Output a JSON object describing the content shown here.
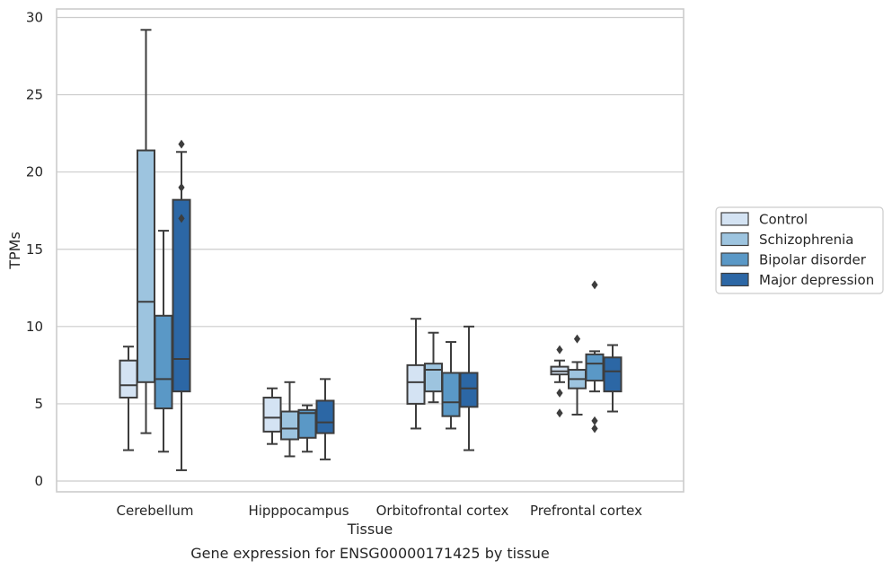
{
  "chart_data": {
    "type": "box",
    "xlabel": "Tissue",
    "ylabel": "TPMs",
    "caption": "Gene expression for ENSG00000171425 by tissue",
    "ylim": [
      -0.5,
      30.6
    ],
    "yticks": [
      0,
      5,
      10,
      15,
      20,
      25,
      30
    ],
    "grid": true,
    "legend_position": "right",
    "categories": [
      "Cerebellum",
      "Hipppocampus",
      "Orbitofrontal cortex",
      "Prefrontal cortex"
    ],
    "series": [
      {
        "name": "Control",
        "color": "#d4e3f3",
        "boxes": [
          {
            "min": 2.0,
            "q1": 5.4,
            "median": 6.2,
            "q3": 7.8,
            "max": 8.7,
            "outliers": []
          },
          {
            "min": 2.4,
            "q1": 3.2,
            "median": 4.1,
            "q3": 5.4,
            "max": 6.0,
            "outliers": []
          },
          {
            "min": 3.4,
            "q1": 5.0,
            "median": 6.4,
            "q3": 7.5,
            "max": 10.5,
            "outliers": []
          },
          {
            "min": 6.4,
            "q1": 6.9,
            "median": 7.1,
            "q3": 7.4,
            "max": 7.8,
            "outliers": [
              8.5,
              5.7,
              4.4
            ]
          }
        ]
      },
      {
        "name": "Schizophrenia",
        "color": "#9dc4df",
        "boxes": [
          {
            "min": 3.1,
            "q1": 6.4,
            "median": 11.6,
            "q3": 21.4,
            "max": 29.2,
            "outliers": []
          },
          {
            "min": 1.6,
            "q1": 2.7,
            "median": 3.4,
            "q3": 4.5,
            "max": 6.4,
            "outliers": []
          },
          {
            "min": 5.1,
            "q1": 5.8,
            "median": 7.2,
            "q3": 7.6,
            "max": 9.6,
            "outliers": []
          },
          {
            "min": 4.3,
            "q1": 6.0,
            "median": 6.6,
            "q3": 7.2,
            "max": 7.7,
            "outliers": [
              9.2
            ]
          }
        ]
      },
      {
        "name": "Bipolar disorder",
        "color": "#5a98c6",
        "boxes": [
          {
            "min": 1.9,
            "q1": 4.7,
            "median": 6.6,
            "q3": 10.7,
            "max": 16.2,
            "outliers": []
          },
          {
            "min": 1.9,
            "q1": 2.8,
            "median": 4.4,
            "q3": 4.6,
            "max": 4.9,
            "outliers": []
          },
          {
            "min": 3.4,
            "q1": 4.2,
            "median": 5.1,
            "q3": 7.0,
            "max": 9.0,
            "outliers": []
          },
          {
            "min": 5.8,
            "q1": 6.5,
            "median": 7.6,
            "q3": 8.2,
            "max": 8.4,
            "outliers": [
              12.7,
              3.9,
              3.4
            ]
          }
        ]
      },
      {
        "name": "Major depression",
        "color": "#2c67a5",
        "boxes": [
          {
            "min": 0.7,
            "q1": 5.8,
            "median": 7.9,
            "q3": 18.2,
            "max": 21.3,
            "outliers": [
              21.8,
              19.0,
              17.0
            ]
          },
          {
            "min": 1.4,
            "q1": 3.1,
            "median": 3.8,
            "q3": 5.2,
            "max": 6.6,
            "outliers": []
          },
          {
            "min": 2.0,
            "q1": 4.8,
            "median": 6.0,
            "q3": 7.0,
            "max": 10.0,
            "outliers": []
          },
          {
            "min": 4.5,
            "q1": 5.8,
            "median": 7.1,
            "q3": 8.0,
            "max": 8.8,
            "outliers": []
          }
        ]
      }
    ]
  }
}
